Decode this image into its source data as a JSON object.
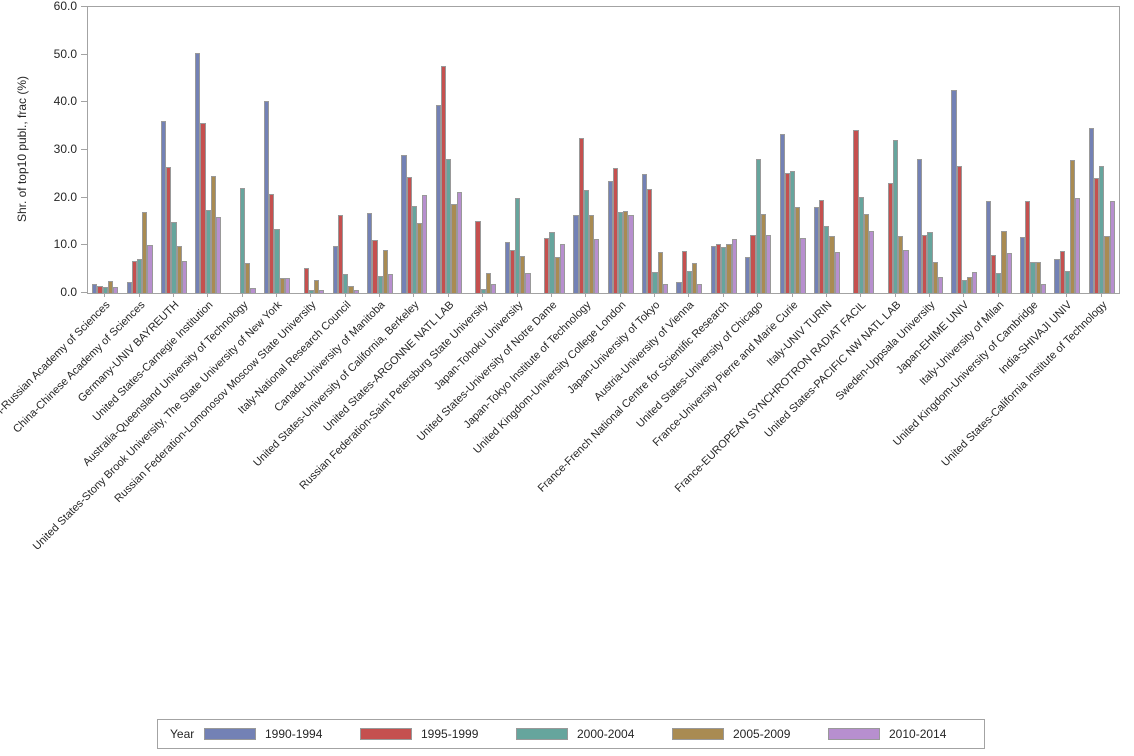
{
  "chart_data": {
    "type": "bar",
    "title": "",
    "xlabel": "",
    "ylabel": "Shr. of top10 publ., frac (%)",
    "ylim": [
      0,
      60
    ],
    "yticks": [
      0,
      10,
      20,
      30,
      40,
      50,
      60
    ],
    "ytick_labels": [
      "0.0",
      "10.0",
      "20.0",
      "30.0",
      "40.0",
      "50.0",
      "60.0"
    ],
    "grid": false,
    "legend_title": "Year",
    "legend_position": "bottom",
    "categories": [
      "Russian Federation-Russian Academy of Sciences",
      "China-Chinese Academy of Sciences",
      "Germany-UNIV BAYREUTH",
      "United States-Carnegie Institution",
      "Australia-Queensland University of Technology",
      "United States-Stony Brook University, The State University of New York",
      "Russian Federation-Lomonosov Moscow State University",
      "Italy-National Research Council",
      "Canada-University of Manitoba",
      "United States-University of California, Berkeley",
      "United States-ARGONNE NATL LAB",
      "Russian Federation-Saint Petersburg State University",
      "Japan-Tohoku University",
      "United States-University of Notre Dame",
      "Japan-Tokyo Institute of Technology",
      "United Kingdom-University College London",
      "Japan-University of Tokyo",
      "Austria-University of Vienna",
      "France-French National Centre for Scientific Research",
      "United States-University of Chicago",
      "France-University Pierre and Marie Curie",
      "Italy-UNIV TURIN",
      "France-EUROPEAN SYNCHROTRON RADIAT FACIL",
      "United States-PACIFIC NW NATL LAB",
      "Sweden-Uppsala University",
      "Japan-EHIME UNIV",
      "Italy-University of Milan",
      "United Kingdom-University of Cambridge",
      "India-SHIVAJI UNIV",
      "United States-California Institute of Technology"
    ],
    "series": [
      {
        "name": "1990-1994",
        "color": "#7381B5",
        "values": [
          1.8,
          2.3,
          36.1,
          50.4,
          0,
          40.3,
          0,
          9.8,
          16.8,
          28.9,
          39.4,
          0,
          10.7,
          0,
          16.4,
          23.6,
          25.0,
          2.3,
          9.8,
          7.5,
          33.3,
          18.1,
          0,
          0,
          28.1,
          42.5,
          19.3,
          11.8,
          7.2,
          34.7
        ]
      },
      {
        "name": "1995-1999",
        "color": "#C5504F",
        "values": [
          1.4,
          6.7,
          26.4,
          35.6,
          0,
          20.8,
          5.2,
          16.4,
          11.2,
          24.4,
          47.7,
          15.2,
          9.0,
          11.6,
          32.5,
          26.2,
          21.8,
          8.8,
          10.2,
          12.1,
          25.2,
          19.5,
          34.2,
          23.0,
          12.1,
          26.7,
          7.9,
          19.3,
          8.9,
          24.1
        ]
      },
      {
        "name": "2000-2004",
        "color": "#66A59D",
        "values": [
          1.3,
          7.2,
          15.0,
          17.5,
          22.0,
          13.5,
          0.7,
          3.9,
          3.6,
          18.2,
          28.1,
          0.8,
          20.0,
          12.8,
          21.6,
          16.9,
          4.4,
          4.6,
          9.7,
          28.1,
          25.7,
          14.0,
          20.1,
          32.1,
          12.8,
          2.8,
          4.2,
          6.5,
          4.6,
          26.7
        ]
      },
      {
        "name": "2005-2009",
        "color": "#A98B52",
        "values": [
          2.5,
          16.9,
          9.8,
          24.6,
          6.3,
          3.2,
          2.7,
          1.4,
          9.1,
          14.7,
          18.7,
          4.1,
          7.7,
          7.6,
          16.3,
          17.3,
          8.7,
          6.2,
          10.2,
          16.6,
          18.1,
          11.9,
          16.5,
          11.9,
          6.5,
          3.4,
          13.1,
          6.5,
          27.9,
          11.9
        ]
      },
      {
        "name": "2010-2014",
        "color": "#B78FCF",
        "values": [
          1.2,
          10.1,
          6.7,
          16.0,
          1.0,
          3.1,
          0.6,
          0.6,
          3.9,
          20.6,
          21.2,
          1.8,
          4.1,
          10.3,
          11.4,
          16.4,
          1.9,
          1.9,
          11.4,
          12.1,
          11.6,
          8.6,
          13.0,
          9.1,
          3.4,
          4.4,
          8.4,
          1.8,
          20.0,
          19.2
        ]
      }
    ],
    "bar_border_color": "#999999",
    "axis_color": "#A3A3A3",
    "text_color": "#262626"
  }
}
